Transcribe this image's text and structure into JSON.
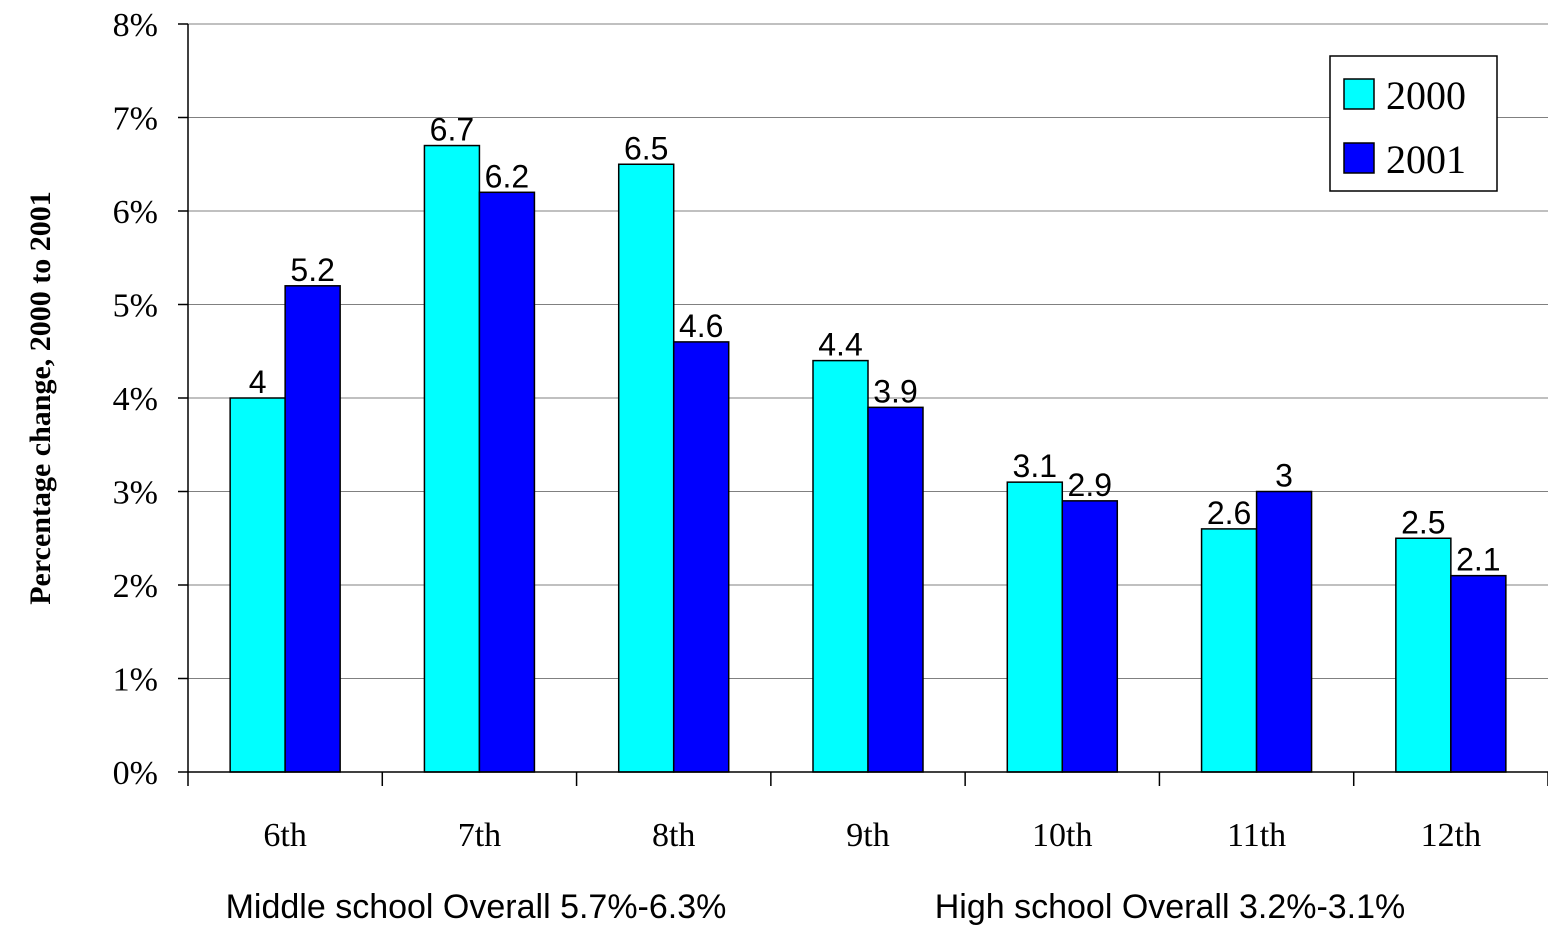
{
  "chart_data": {
    "type": "bar",
    "categories": [
      "6th",
      "7th",
      "8th",
      "9th",
      "10th",
      "11th",
      "12th"
    ],
    "series": [
      {
        "name": "2000",
        "color": "#00ffff",
        "values": [
          4,
          6.7,
          6.5,
          4.4,
          3.1,
          2.6,
          2.5
        ],
        "labels": [
          "4",
          "6.7",
          "6.5",
          "4.4",
          "3.1",
          "2.6",
          "2.5"
        ]
      },
      {
        "name": "2001",
        "color": "#0000ff",
        "values": [
          5.2,
          6.2,
          4.6,
          3.9,
          2.9,
          3,
          2.1
        ],
        "labels": [
          "5.2",
          "6.2",
          "4.6",
          "3.9",
          "2.9",
          "3",
          "2.1"
        ]
      }
    ],
    "ylabel": "Percentage change, 2000 to 2001",
    "ylim": [
      0,
      8
    ],
    "yticks": [
      "0%",
      "1%",
      "2%",
      "3%",
      "4%",
      "5%",
      "6%",
      "7%",
      "8%"
    ],
    "grid": true,
    "legend_position": "top-right",
    "notes": [
      "Middle school Overall 5.7%-6.3%",
      "High school Overall 3.2%-3.1%"
    ]
  }
}
